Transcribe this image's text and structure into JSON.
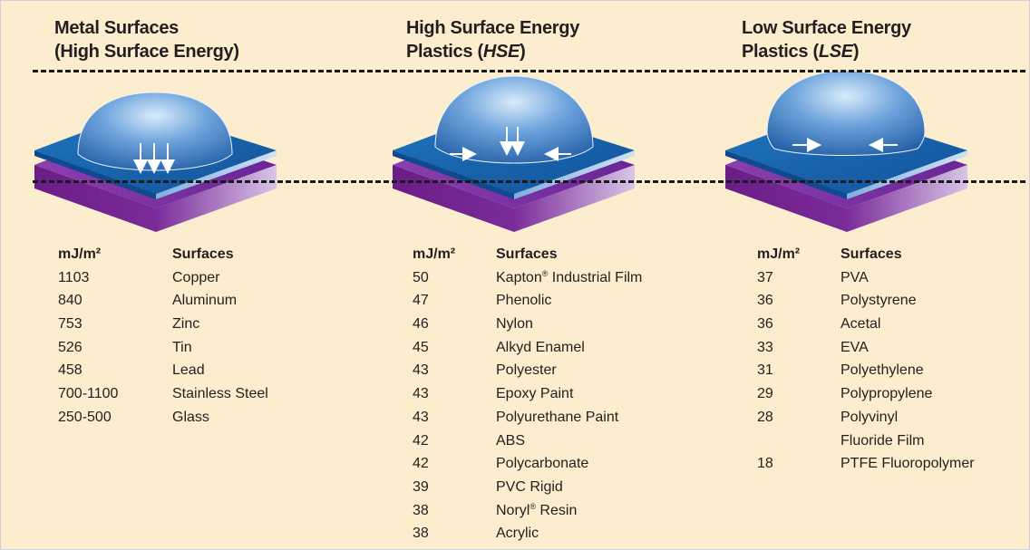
{
  "colors": {
    "background": "#fcedcf",
    "surface_top": "#1a6bb0",
    "substrate": "#6a1d87",
    "droplet": "#5a90cf"
  },
  "columns": [
    {
      "title_line1": "Metal Surfaces",
      "title_line2": "(High Surface Energy)",
      "col_energy_header": "mJ/m²",
      "col_surface_header": "Surfaces",
      "rows": [
        {
          "energy": "1103",
          "surface": "Copper"
        },
        {
          "energy": "840",
          "surface": "Aluminum"
        },
        {
          "energy": "753",
          "surface": "Zinc"
        },
        {
          "energy": "526",
          "surface": "Tin"
        },
        {
          "energy": "458",
          "surface": "Lead"
        },
        {
          "energy": "700-1100",
          "surface": "Stainless Steel"
        },
        {
          "energy": "250-500",
          "surface": "Glass"
        }
      ]
    },
    {
      "title_line1": "High Surface Energy",
      "title_line2_pre": "Plastics (",
      "title_line2_em": "HSE",
      "title_line2_post": ")",
      "col_energy_header": "mJ/m²",
      "col_surface_header": "Surfaces",
      "rows": [
        {
          "energy": "50",
          "surface": "Kapton",
          "sup": "®",
          "surface_post": " Industrial Film"
        },
        {
          "energy": "47",
          "surface": "Phenolic"
        },
        {
          "energy": "46",
          "surface": "Nylon"
        },
        {
          "energy": "45",
          "surface": "Alkyd Enamel"
        },
        {
          "energy": "43",
          "surface": "Polyester"
        },
        {
          "energy": "43",
          "surface": "Epoxy Paint"
        },
        {
          "energy": "43",
          "surface": "Polyurethane Paint"
        },
        {
          "energy": "42",
          "surface": "ABS"
        },
        {
          "energy": "42",
          "surface": "Polycarbonate"
        },
        {
          "energy": "39",
          "surface": "PVC Rigid"
        },
        {
          "energy": "38",
          "surface": "Noryl",
          "sup": "®",
          "surface_post": " Resin"
        },
        {
          "energy": "38",
          "surface": "Acrylic"
        }
      ]
    },
    {
      "title_line1": "Low Surface Energy",
      "title_line2_pre": "Plastics (",
      "title_line2_em": "LSE",
      "title_line2_post": ")",
      "col_energy_header": "mJ/m²",
      "col_surface_header": "Surfaces",
      "rows": [
        {
          "energy": "37",
          "surface": "PVA"
        },
        {
          "energy": "36",
          "surface": "Polystyrene"
        },
        {
          "energy": "36",
          "surface": "Acetal"
        },
        {
          "energy": "33",
          "surface": "EVA"
        },
        {
          "energy": "31",
          "surface": "Polyethylene"
        },
        {
          "energy": "29",
          "surface": "Polypropylene"
        },
        {
          "energy": "28",
          "surface": "Polyvinyl"
        },
        {
          "energy": "",
          "surface": "Fluoride Film"
        },
        {
          "energy": "18",
          "surface": "PTFE Fluoropolymer"
        }
      ]
    }
  ]
}
